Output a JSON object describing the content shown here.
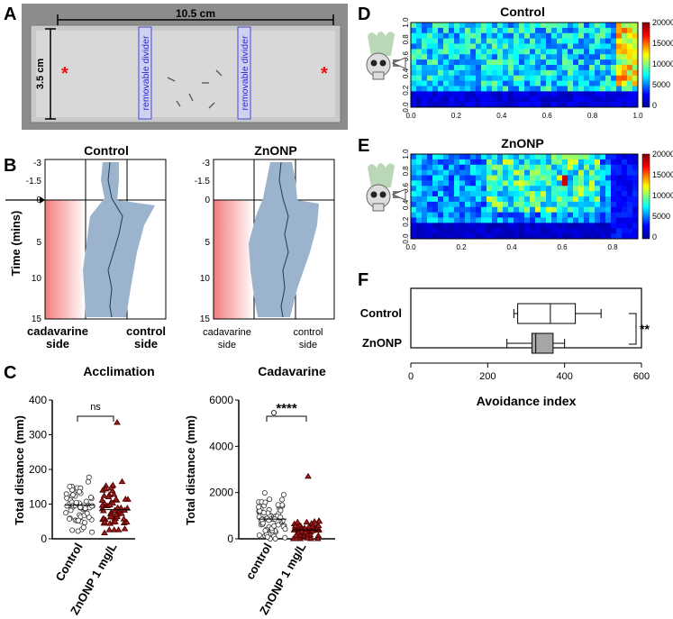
{
  "panels": {
    "A": "A",
    "B": "B",
    "C": "C",
    "D": "D",
    "E": "E",
    "F": "F"
  },
  "panel_a": {
    "width_label": "10.5 cm",
    "height_label": "3.5 cm",
    "divider_left": "removable divider",
    "divider_right": "removable divider",
    "marker": "*"
  },
  "panel_b": {
    "ylabel": "Time (mins)",
    "titles": [
      "Control",
      "ZnONP"
    ],
    "yticks": [
      "-3",
      "-1.5",
      "0",
      "5",
      "10",
      "15"
    ],
    "xlabel_left": [
      "cadavarine",
      "side"
    ],
    "xlabel_right": [
      "control",
      "side"
    ]
  },
  "panel_c": {
    "acclimation": {
      "title": "Acclimation",
      "ylabel": "Total distance (mm)",
      "yticks": [
        "0",
        "100",
        "200",
        "300",
        "400"
      ],
      "categories": [
        "Control",
        "ZnONP 1 mg/L"
      ],
      "sig": "ns"
    },
    "cadavarine": {
      "title": "Cadavarine",
      "ylabel": "Total distance (mm)",
      "yticks": [
        "0",
        "2000",
        "4000",
        "6000"
      ],
      "categories": [
        "control",
        "ZnONP 1 mg/L"
      ],
      "sig": "****"
    }
  },
  "panel_d": {
    "title": "Control",
    "yticks": [
      "0.0",
      "0.2",
      "0.4",
      "0.6",
      "0.8",
      "1.0"
    ],
    "xticks": [
      "0.0",
      "0.2",
      "0.4",
      "0.6",
      "0.8",
      "1.0"
    ],
    "cbar": [
      "20000",
      "15000",
      "10000",
      "5000",
      "0"
    ]
  },
  "panel_e": {
    "title": "ZnONP",
    "yticks": [
      "0.0",
      "0.2",
      "0.4",
      "0.6",
      "0.8",
      "1.0"
    ],
    "xticks": [
      "0.0",
      "0.2",
      "0.4",
      "0.6",
      "0.8"
    ],
    "cbar": [
      "20000",
      "15000",
      "10000",
      "5000",
      "0"
    ]
  },
  "panel_f": {
    "categories": [
      "Control",
      "ZnONP"
    ],
    "xticks": [
      "0",
      "200",
      "400",
      "600"
    ],
    "xlabel": "Avoidance index",
    "sig": "**"
  },
  "chart_data": [
    {
      "type": "scatter",
      "title": "Acclimation",
      "ylabel": "Total distance (mm)",
      "ylim": [
        0,
        400
      ],
      "series": [
        {
          "name": "Control",
          "mean": 97
        },
        {
          "name": "ZnONP 1 mg/L",
          "mean": 84,
          "max": 335
        }
      ]
    },
    {
      "type": "scatter",
      "title": "Cadavarine",
      "ylabel": "Total distance (mm)",
      "ylim": [
        0,
        6000
      ],
      "series": [
        {
          "name": "control",
          "mean": 850,
          "max": 5450
        },
        {
          "name": "ZnONP 1 mg/L",
          "mean": 380,
          "max": 2700
        }
      ]
    },
    {
      "type": "heatmap",
      "title": "Control",
      "xlim": [
        0,
        1
      ],
      "ylim": [
        0,
        1
      ],
      "colorbar": [
        0,
        20000
      ]
    },
    {
      "type": "heatmap",
      "title": "ZnONP",
      "xlim": [
        0,
        0.9
      ],
      "ylim": [
        0,
        1
      ],
      "colorbar": [
        0,
        20000
      ]
    },
    {
      "type": "bar",
      "xlabel": "Avoidance index",
      "xlim": [
        0,
        600
      ],
      "series": [
        {
          "name": "Control",
          "min": 268,
          "q1": 278,
          "median": 363,
          "q3": 428,
          "max": 495
        },
        {
          "name": "ZnONP",
          "min": 250,
          "q1": 315,
          "median": 325,
          "q3": 370,
          "max": 400
        }
      ]
    }
  ]
}
